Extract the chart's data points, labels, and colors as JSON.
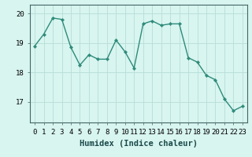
{
  "x": [
    0,
    1,
    2,
    3,
    4,
    5,
    6,
    7,
    8,
    9,
    10,
    11,
    12,
    13,
    14,
    15,
    16,
    17,
    18,
    19,
    20,
    21,
    22,
    23
  ],
  "y": [
    18.9,
    19.3,
    19.85,
    19.8,
    18.85,
    18.25,
    18.6,
    18.45,
    18.45,
    19.1,
    18.7,
    18.15,
    19.65,
    19.75,
    19.6,
    19.65,
    19.65,
    18.5,
    18.35,
    17.9,
    17.75,
    17.1,
    16.7,
    16.85
  ],
  "line_color": "#2e8b7a",
  "marker": "D",
  "marker_size": 2.2,
  "linewidth": 1.0,
  "bg_color": "#d8f5f0",
  "grid_color": "#b8ddd8",
  "xlabel": "Humidex (Indice chaleur)",
  "xlabel_fontsize": 7.5,
  "tick_label_fontsize": 6.5,
  "ylim": [
    16.3,
    20.3
  ],
  "yticks": [
    17,
    18,
    19,
    20
  ],
  "xticks": [
    0,
    1,
    2,
    3,
    4,
    5,
    6,
    7,
    8,
    9,
    10,
    11,
    12,
    13,
    14,
    15,
    16,
    17,
    18,
    19,
    20,
    21,
    22,
    23
  ]
}
